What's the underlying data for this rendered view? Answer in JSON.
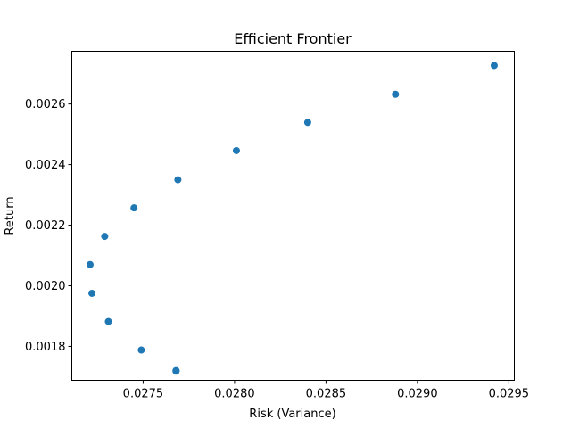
{
  "chart_data": {
    "type": "scatter",
    "title": "Efficient Frontier",
    "xlabel": "Risk (Variance)",
    "ylabel": "Return",
    "xlim": [
      0.02711,
      0.02953
    ],
    "ylim": [
      0.001688,
      0.002774
    ],
    "xticks": [
      "0.0275",
      "0.0280",
      "0.0285",
      "0.0290",
      "0.0295"
    ],
    "xtick_values": [
      0.0275,
      0.028,
      0.0285,
      0.029,
      0.0295
    ],
    "yticks": [
      "0.0018",
      "0.0020",
      "0.0022",
      "0.0024",
      "0.0026"
    ],
    "ytick_values": [
      0.0018,
      0.002,
      0.0022,
      0.0024,
      0.0026
    ],
    "grid": false,
    "marker_color": "#1f77b4",
    "points": [
      {
        "x": 0.02768,
        "y": 0.001718
      },
      {
        "x": 0.02768,
        "y": 0.001719
      },
      {
        "x": 0.02768,
        "y": 0.00172
      },
      {
        "x": 0.02749,
        "y": 0.001788
      },
      {
        "x": 0.02731,
        "y": 0.001882
      },
      {
        "x": 0.02722,
        "y": 0.001975
      },
      {
        "x": 0.02721,
        "y": 0.00207
      },
      {
        "x": 0.02729,
        "y": 0.002163
      },
      {
        "x": 0.02745,
        "y": 0.002257
      },
      {
        "x": 0.02769,
        "y": 0.00235
      },
      {
        "x": 0.02801,
        "y": 0.002446
      },
      {
        "x": 0.0284,
        "y": 0.002539
      },
      {
        "x": 0.02888,
        "y": 0.002632
      },
      {
        "x": 0.02942,
        "y": 0.002727
      }
    ]
  }
}
